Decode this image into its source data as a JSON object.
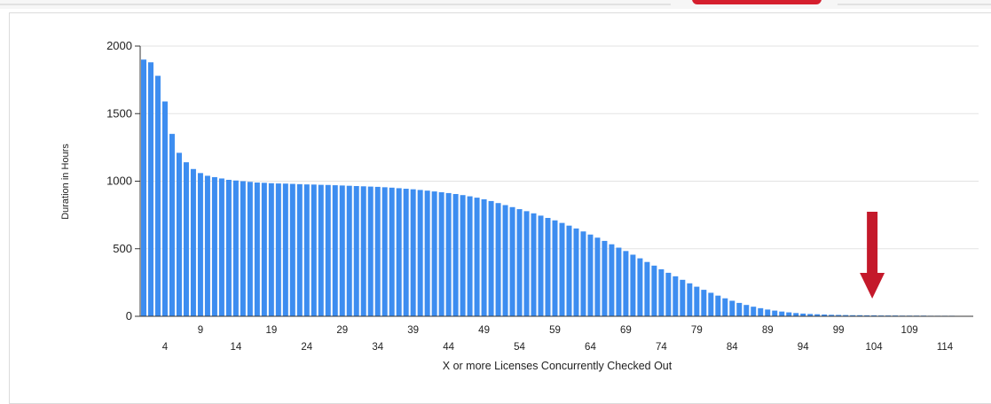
{
  "colors": {
    "bar": "#3d8df0",
    "arrow": "#c4192b",
    "grid": "#e3e3e3",
    "axis": "#333333",
    "tab_active": "#d51f2e"
  },
  "chart_data": {
    "type": "bar",
    "title": "",
    "xlabel": "X or more Licenses Concurrently Checked Out",
    "ylabel": "Duration in Hours",
    "ylim": [
      0,
      2000
    ],
    "yticks": [
      0,
      500,
      1000,
      1500,
      2000
    ],
    "ytick_labels": [
      "0",
      "500",
      "1000",
      "1500",
      "2000"
    ],
    "x_start": 1,
    "x_end": 117,
    "xticks_upper": [
      9,
      19,
      29,
      39,
      49,
      59,
      69,
      79,
      89,
      99,
      109
    ],
    "xticks_lower": [
      4,
      14,
      24,
      34,
      44,
      54,
      64,
      74,
      84,
      94,
      104,
      114
    ],
    "grid": true,
    "legend": "none",
    "annotation": {
      "type": "arrow",
      "points_to_x": 104,
      "direction": "down"
    },
    "categories": [
      1,
      2,
      3,
      4,
      5,
      6,
      7,
      8,
      9,
      10,
      11,
      12,
      13,
      14,
      15,
      16,
      17,
      18,
      19,
      20,
      21,
      22,
      23,
      24,
      25,
      26,
      27,
      28,
      29,
      30,
      31,
      32,
      33,
      34,
      35,
      36,
      37,
      38,
      39,
      40,
      41,
      42,
      43,
      44,
      45,
      46,
      47,
      48,
      49,
      50,
      51,
      52,
      53,
      54,
      55,
      56,
      57,
      58,
      59,
      60,
      61,
      62,
      63,
      64,
      65,
      66,
      67,
      68,
      69,
      70,
      71,
      72,
      73,
      74,
      75,
      76,
      77,
      78,
      79,
      80,
      81,
      82,
      83,
      84,
      85,
      86,
      87,
      88,
      89,
      90,
      91,
      92,
      93,
      94,
      95,
      96,
      97,
      98,
      99,
      100,
      101,
      102,
      103,
      104,
      105,
      106,
      107,
      108,
      109,
      110,
      111,
      112,
      113,
      114,
      115,
      116,
      117
    ],
    "values": [
      1900,
      1880,
      1780,
      1590,
      1350,
      1210,
      1140,
      1090,
      1060,
      1040,
      1030,
      1020,
      1010,
      1005,
      1000,
      995,
      990,
      988,
      985,
      983,
      982,
      980,
      978,
      976,
      975,
      973,
      972,
      970,
      968,
      966,
      964,
      962,
      960,
      958,
      955,
      952,
      948,
      944,
      940,
      935,
      930,
      924,
      918,
      912,
      905,
      897,
      888,
      878,
      866,
      853,
      838,
      823,
      808,
      793,
      778,
      762,
      745,
      728,
      710,
      691,
      671,
      650,
      628,
      605,
      582,
      558,
      533,
      508,
      483,
      456,
      429,
      402,
      375,
      348,
      322,
      296,
      270,
      244,
      219,
      196,
      174,
      153,
      133,
      115,
      99,
      84,
      71,
      60,
      50,
      42,
      35,
      29,
      24,
      20,
      17,
      15,
      13,
      11,
      10,
      9,
      8,
      8,
      7,
      7,
      6,
      6,
      6,
      5,
      5,
      5,
      5,
      4,
      4,
      4,
      4,
      3,
      3
    ]
  }
}
